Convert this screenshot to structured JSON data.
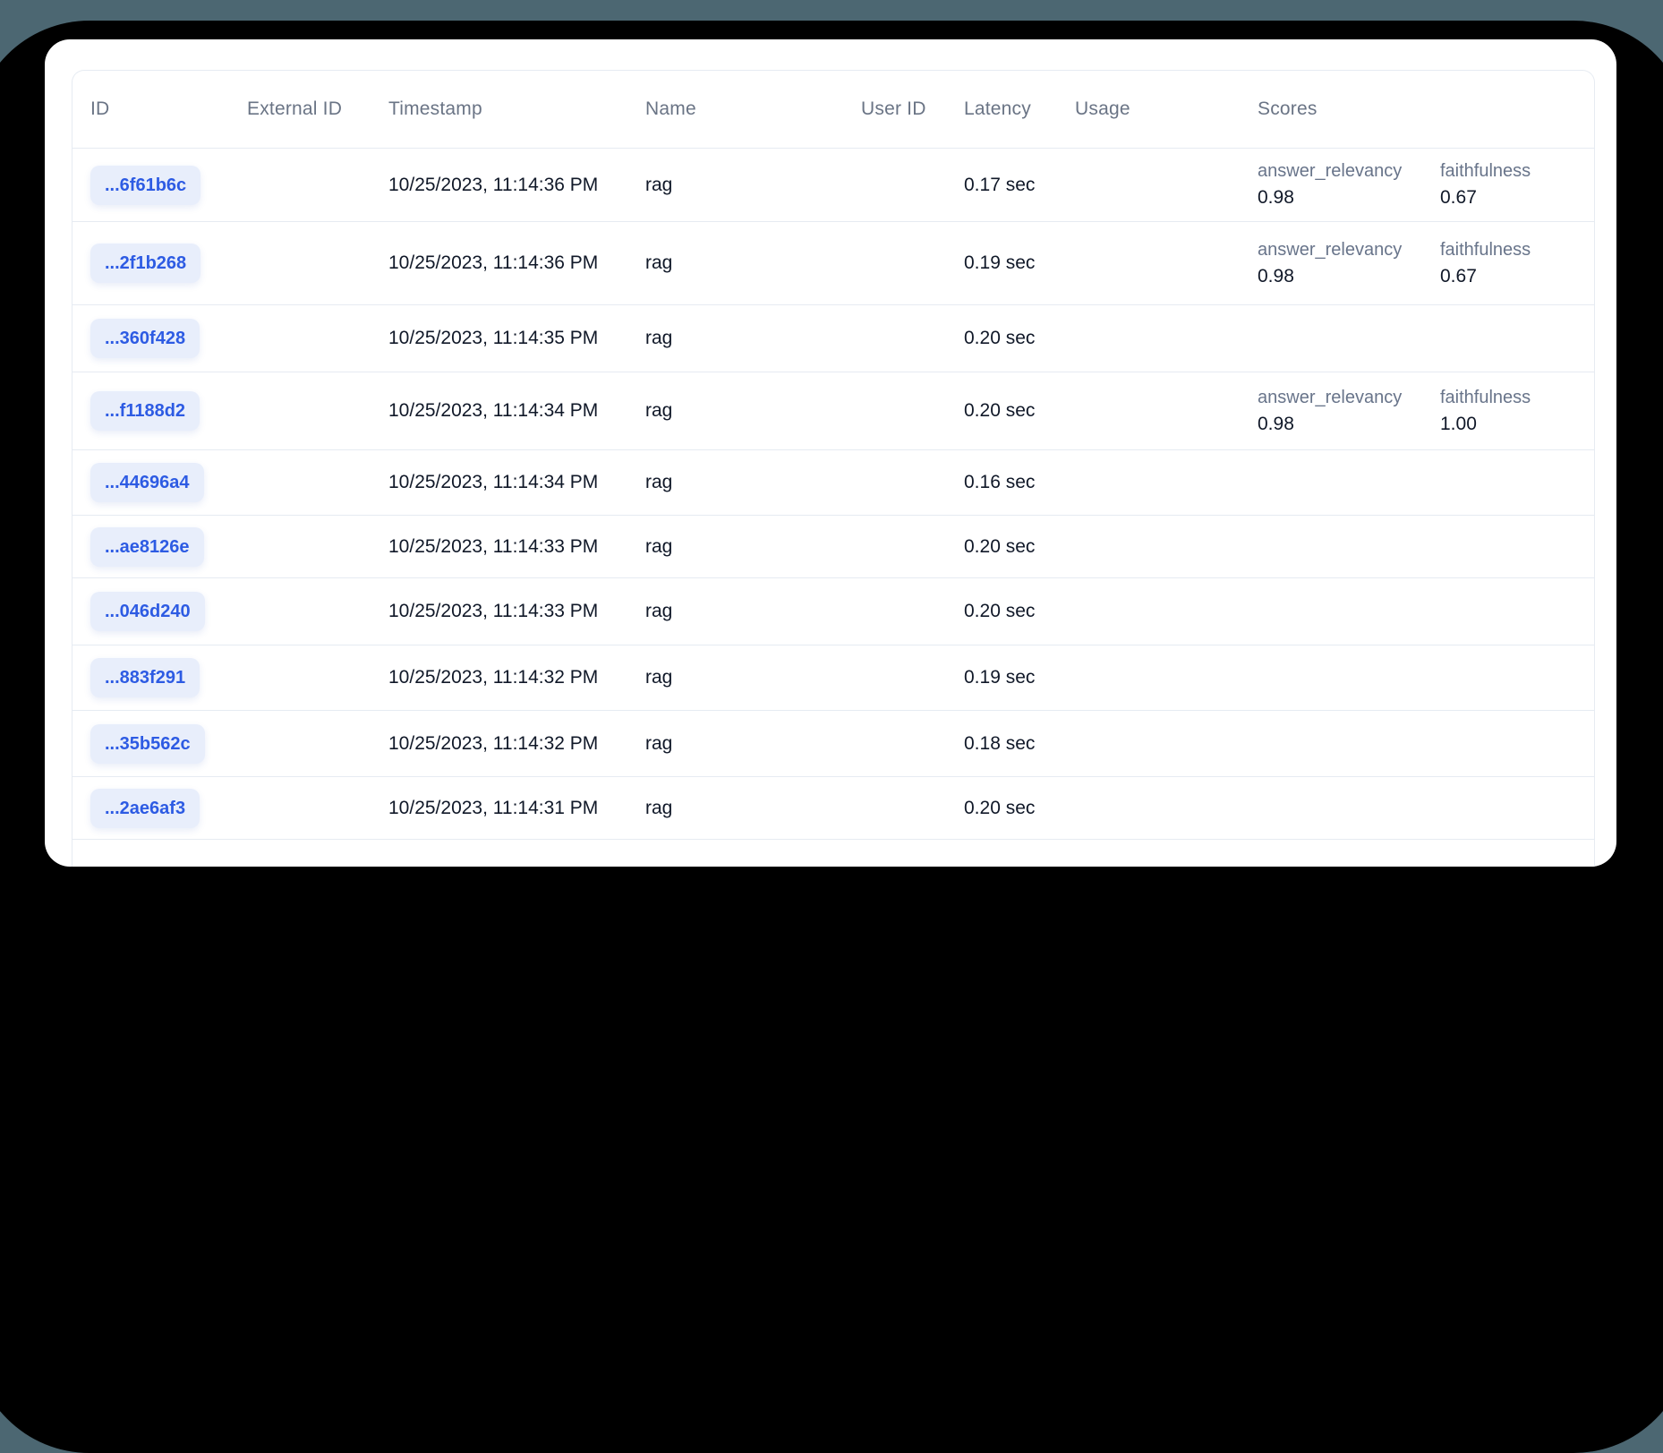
{
  "theme": {
    "backdrop_top_color": "#4C6772",
    "backdrop_shadow_color": "#000000",
    "card_background": "#FFFFFF",
    "divider_color": "#E6EBF2",
    "header_text_color": "#6A7485",
    "body_text_color": "#101828",
    "badge_background": "#E8EEFB",
    "badge_text_color": "#2D5BE3",
    "score_label_color": "#68748A"
  },
  "table": {
    "columns": [
      "ID",
      "External ID",
      "Timestamp",
      "Name",
      "User ID",
      "Latency",
      "Usage",
      "Scores"
    ],
    "rows": [
      {
        "id": "...6f61b6c",
        "external_id": "",
        "timestamp": "10/25/2023, 11:14:36 PM",
        "name": "rag",
        "user_id": "",
        "latency": "0.17 sec",
        "usage": "",
        "scores": [
          {
            "name": "answer_relevancy",
            "value": "0.98"
          },
          {
            "name": "faithfulness",
            "value": "0.67"
          }
        ]
      },
      {
        "id": "...2f1b268",
        "external_id": "",
        "timestamp": "10/25/2023, 11:14:36 PM",
        "name": "rag",
        "user_id": "",
        "latency": "0.19 sec",
        "usage": "",
        "scores": [
          {
            "name": "answer_relevancy",
            "value": "0.98"
          },
          {
            "name": "faithfulness",
            "value": "0.67"
          }
        ]
      },
      {
        "id": "...360f428",
        "external_id": "",
        "timestamp": "10/25/2023, 11:14:35 PM",
        "name": "rag",
        "user_id": "",
        "latency": "0.20 sec",
        "usage": "",
        "scores": []
      },
      {
        "id": "...f1188d2",
        "external_id": "",
        "timestamp": "10/25/2023, 11:14:34 PM",
        "name": "rag",
        "user_id": "",
        "latency": "0.20 sec",
        "usage": "",
        "scores": [
          {
            "name": "answer_relevancy",
            "value": "0.98"
          },
          {
            "name": "faithfulness",
            "value": "1.00"
          }
        ]
      },
      {
        "id": "...44696a4",
        "external_id": "",
        "timestamp": "10/25/2023, 11:14:34 PM",
        "name": "rag",
        "user_id": "",
        "latency": "0.16 sec",
        "usage": "",
        "scores": []
      },
      {
        "id": "...ae8126e",
        "external_id": "",
        "timestamp": "10/25/2023, 11:14:33 PM",
        "name": "rag",
        "user_id": "",
        "latency": "0.20 sec",
        "usage": "",
        "scores": []
      },
      {
        "id": "...046d240",
        "external_id": "",
        "timestamp": "10/25/2023, 11:14:33 PM",
        "name": "rag",
        "user_id": "",
        "latency": "0.20 sec",
        "usage": "",
        "scores": []
      },
      {
        "id": "...883f291",
        "external_id": "",
        "timestamp": "10/25/2023, 11:14:32 PM",
        "name": "rag",
        "user_id": "",
        "latency": "0.19 sec",
        "usage": "",
        "scores": []
      },
      {
        "id": "...35b562c",
        "external_id": "",
        "timestamp": "10/25/2023, 11:14:32 PM",
        "name": "rag",
        "user_id": "",
        "latency": "0.18 sec",
        "usage": "",
        "scores": []
      },
      {
        "id": "...2ae6af3",
        "external_id": "",
        "timestamp": "10/25/2023, 11:14:31 PM",
        "name": "rag",
        "user_id": "",
        "latency": "0.20 sec",
        "usage": "",
        "scores": []
      }
    ]
  }
}
